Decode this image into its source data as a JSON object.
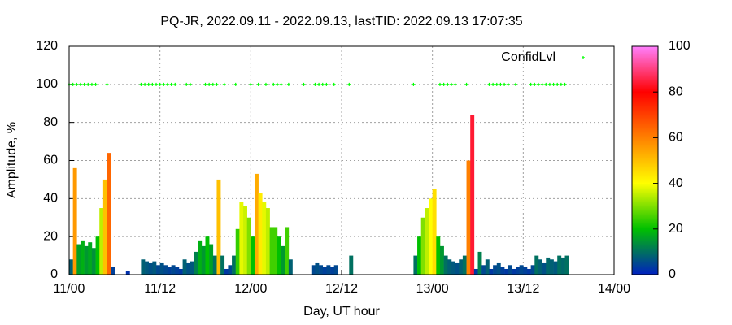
{
  "chart_data": {
    "type": "bar",
    "title": "PQ-JR, 2022.09.11 - 2022.09.13, lastTID: 2022.09.13 17:07:35",
    "xlabel": "Day, UT hour",
    "ylabel": "Amplitude, %",
    "xlim": [
      0,
      72
    ],
    "xticks": [
      {
        "value": 0,
        "label": "11/00"
      },
      {
        "value": 12,
        "label": "11/12"
      },
      {
        "value": 24,
        "label": "12/00"
      },
      {
        "value": 36,
        "label": "12/12"
      },
      {
        "value": 48,
        "label": "13/00"
      },
      {
        "value": 60,
        "label": "13/12"
      },
      {
        "value": 72,
        "label": "14/00"
      }
    ],
    "ylim": [
      0,
      120
    ],
    "yticks": [
      0,
      20,
      40,
      60,
      80,
      100,
      120
    ],
    "grid": true,
    "cblim": [
      0,
      100
    ],
    "cbticks": [
      0,
      20,
      40,
      60,
      80,
      100
    ],
    "palette": [
      "#0020c0",
      "#00c000",
      "#ffff00",
      "#ff8000",
      "#ff0000",
      "#ff80ff"
    ],
    "x": [
      0,
      0.5,
      1,
      1.5,
      2,
      2.5,
      3,
      3.5,
      4,
      4.5,
      5,
      5.5,
      6,
      6.5,
      7,
      7.5,
      8,
      8.5,
      9,
      9.5,
      10,
      10.5,
      11,
      11.5,
      12,
      12.5,
      13,
      13.5,
      14,
      14.5,
      15,
      15.5,
      16,
      16.5,
      17,
      17.5,
      18,
      18.5,
      19,
      19.5,
      20,
      20.5,
      21,
      21.5,
      22,
      22.5,
      23,
      23.5,
      24,
      24.5,
      25,
      25.5,
      26,
      26.5,
      27,
      27.5,
      28,
      28.5,
      29,
      29.5,
      30,
      30.5,
      31,
      31.5,
      32,
      32.5,
      33,
      33.5,
      34,
      34.5,
      35,
      35.5,
      36,
      36.5,
      37,
      37.5,
      38,
      38.5,
      39,
      39.5,
      40,
      40.5,
      41,
      41.5,
      42,
      42.5,
      43,
      43.5,
      44,
      44.5,
      45,
      45.5,
      46,
      46.5,
      47,
      47.5,
      48,
      48.5,
      49,
      49.5,
      50,
      50.5,
      51,
      51.5,
      52,
      52.5,
      53,
      53.5,
      54,
      54.5,
      55,
      55.5,
      56,
      56.5,
      57,
      57.5,
      58,
      58.5,
      59,
      59.5,
      60,
      60.5,
      61,
      61.5,
      62,
      62.5,
      63,
      63.5,
      64,
      64.5,
      65,
      65.5
    ],
    "values": [
      8,
      56,
      16,
      18,
      15,
      17,
      14,
      20,
      35,
      50,
      64,
      4,
      null,
      null,
      null,
      2,
      null,
      null,
      null,
      8,
      7,
      6,
      7,
      5,
      6,
      5,
      4,
      5,
      4,
      3,
      8,
      6,
      7,
      12,
      18,
      15,
      20,
      16,
      10,
      50,
      10,
      3,
      5,
      10,
      24,
      38,
      36,
      30,
      20,
      53,
      43,
      38,
      35,
      25,
      25,
      20,
      15,
      25,
      8,
      null,
      null,
      null,
      null,
      null,
      5,
      6,
      5,
      4,
      5,
      4,
      5,
      null,
      null,
      null,
      10,
      null,
      null,
      null,
      null,
      null,
      null,
      null,
      null,
      null,
      null,
      null,
      null,
      null,
      null,
      null,
      null,
      10,
      20,
      30,
      35,
      40,
      45,
      20,
      15,
      10,
      8,
      7,
      6,
      8,
      10,
      60,
      84,
      3,
      12,
      5,
      8,
      3,
      5,
      6,
      4,
      3,
      5,
      3,
      4,
      5,
      4,
      3,
      5,
      10,
      8,
      6,
      9,
      8,
      7,
      10,
      9,
      10
    ],
    "points": {
      "name": "ConfidLvl",
      "color": "#00ff00",
      "x": [
        0,
        0.5,
        1,
        1.5,
        2,
        2.5,
        3,
        3.5,
        5,
        9.5,
        10,
        10.5,
        11,
        11.5,
        12,
        12.5,
        13,
        13.5,
        14,
        15.5,
        16,
        18,
        18.5,
        19,
        19.5,
        20.5,
        22,
        24,
        25,
        26,
        27,
        27.5,
        28,
        29,
        31,
        32.5,
        33,
        33.5,
        34,
        35,
        37,
        45.5,
        49,
        49.5,
        50,
        50.5,
        51,
        52.5,
        55.5,
        56,
        56.5,
        57,
        57.5,
        58,
        59,
        61,
        61.5,
        62,
        62.5,
        63,
        63.5,
        64,
        64.5,
        65,
        65.5
      ],
      "values": [
        100,
        100,
        100,
        100,
        100,
        100,
        100,
        100,
        100,
        100,
        100,
        100,
        100,
        100,
        100,
        100,
        100,
        100,
        100,
        100,
        100,
        100,
        100,
        100,
        100,
        100,
        100,
        100,
        100,
        100,
        100,
        100,
        100,
        100,
        100,
        100,
        100,
        100,
        100,
        100,
        100,
        100,
        100,
        100,
        100,
        100,
        100,
        100,
        100,
        100,
        100,
        100,
        100,
        100,
        100,
        100,
        100,
        100,
        100,
        100,
        100,
        100,
        100,
        100,
        100
      ]
    }
  }
}
